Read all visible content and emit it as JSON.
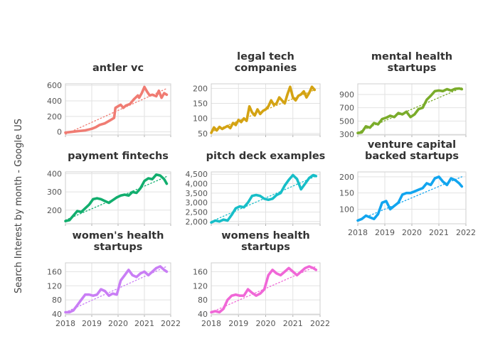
{
  "chart_data": {
    "type": "line",
    "ylabel": "Search Interest by month - Google US",
    "x_tick_labels": [
      "2018",
      "2019",
      "2020",
      "2021",
      "2022"
    ],
    "x_domain": [
      2018.0,
      2022.0
    ],
    "panels": [
      {
        "title": [
          "antler vc"
        ],
        "color": "#F07C73",
        "ylim": [
          -40,
          620
        ],
        "yticks": [
          0,
          200,
          400,
          600
        ],
        "ytick_labels": [
          "0",
          "200",
          "400",
          "600"
        ],
        "x": [
          2018.0,
          2018.25,
          2018.5,
          2018.75,
          2019.0,
          2019.15,
          2019.3,
          2019.5,
          2019.7,
          2019.85,
          2019.9,
          2020.0,
          2020.1,
          2020.2,
          2020.3,
          2020.45,
          2020.6,
          2020.75,
          2020.8,
          2020.9,
          2021.0,
          2021.1,
          2021.2,
          2021.3,
          2021.45,
          2021.55,
          2021.65,
          2021.75,
          2021.85
        ],
        "values": [
          -10,
          0,
          10,
          20,
          40,
          60,
          90,
          110,
          150,
          180,
          310,
          330,
          350,
          310,
          340,
          360,
          420,
          470,
          440,
          500,
          580,
          520,
          470,
          480,
          460,
          530,
          440,
          500,
          480
        ],
        "trend": [
          [
            2018.0,
            -30
          ],
          [
            2021.85,
            560
          ]
        ]
      },
      {
        "title": [
          "legal tech",
          "companies"
        ],
        "color": "#D4A313",
        "ylim": [
          45,
          215
        ],
        "yticks": [
          50,
          100,
          150,
          200
        ],
        "ytick_labels": [
          "50",
          "100",
          "150",
          "200"
        ],
        "x": [
          2018.0,
          2018.1,
          2018.2,
          2018.3,
          2018.4,
          2018.5,
          2018.6,
          2018.7,
          2018.8,
          2018.9,
          2019.0,
          2019.1,
          2019.2,
          2019.3,
          2019.4,
          2019.5,
          2019.6,
          2019.7,
          2019.8,
          2019.9,
          2020.0,
          2020.1,
          2020.2,
          2020.3,
          2020.4,
          2020.5,
          2020.6,
          2020.7,
          2020.8,
          2020.9,
          2021.0,
          2021.1,
          2021.2,
          2021.3,
          2021.4,
          2021.5,
          2021.6,
          2021.7,
          2021.8
        ],
        "values": [
          52,
          70,
          60,
          72,
          65,
          70,
          75,
          68,
          85,
          78,
          95,
          88,
          100,
          92,
          140,
          120,
          110,
          130,
          115,
          125,
          130,
          140,
          160,
          145,
          150,
          170,
          160,
          150,
          180,
          205,
          170,
          160,
          175,
          180,
          190,
          170,
          185,
          205,
          195
        ],
        "trend": [
          [
            2018.0,
            55
          ],
          [
            2021.8,
            195
          ]
        ]
      },
      {
        "title": [
          "mental health",
          "startups"
        ],
        "color": "#7AAC2A",
        "ylim": [
          290,
          1060
        ],
        "yticks": [
          300,
          500,
          700,
          900
        ],
        "ytick_labels": [
          "300",
          "500",
          "700",
          "900"
        ],
        "x": [
          2018.0,
          2018.15,
          2018.3,
          2018.45,
          2018.6,
          2018.75,
          2018.9,
          2019.05,
          2019.2,
          2019.35,
          2019.5,
          2019.65,
          2019.8,
          2019.95,
          2020.1,
          2020.25,
          2020.4,
          2020.55,
          2020.7,
          2020.85,
          2021.0,
          2021.15,
          2021.3,
          2021.45,
          2021.6,
          2021.75,
          2021.85
        ],
        "values": [
          320,
          330,
          420,
          400,
          470,
          450,
          530,
          550,
          580,
          560,
          620,
          600,
          640,
          560,
          600,
          680,
          700,
          820,
          880,
          950,
          960,
          950,
          980,
          960,
          985,
          990,
          980
        ],
        "trend": [
          [
            2018.0,
            330
          ],
          [
            2021.85,
            1000
          ]
        ]
      },
      {
        "title": [
          "payment fintechs"
        ],
        "color": "#12AE6E",
        "ylim": [
          125,
          410
        ],
        "yticks": [
          200,
          300,
          400
        ],
        "ytick_labels": [
          "200",
          "300",
          "400"
        ],
        "x": [
          2018.0,
          2018.15,
          2018.3,
          2018.45,
          2018.6,
          2018.75,
          2018.9,
          2019.05,
          2019.2,
          2019.35,
          2019.5,
          2019.65,
          2019.8,
          2019.95,
          2020.1,
          2020.25,
          2020.4,
          2020.55,
          2020.7,
          2020.85,
          2021.0,
          2021.15,
          2021.3,
          2021.45,
          2021.6,
          2021.75,
          2021.85
        ],
        "values": [
          140,
          145,
          170,
          195,
          190,
          210,
          230,
          260,
          265,
          260,
          250,
          240,
          255,
          270,
          280,
          285,
          280,
          300,
          295,
          320,
          360,
          375,
          370,
          395,
          390,
          370,
          345
        ],
        "trend": [
          [
            2018.0,
            145
          ],
          [
            2021.85,
            385
          ]
        ]
      },
      {
        "title": [
          "pitch deck examples"
        ],
        "color": "#17BEC8",
        "ylim": [
          1880,
          4620
        ],
        "yticks": [
          2000,
          2500,
          3000,
          3500,
          4000,
          4500
        ],
        "ytick_labels": [
          "2,000",
          "2,500",
          "3,000",
          "3,500",
          "4,000",
          "4,500"
        ],
        "x": [
          2018.0,
          2018.15,
          2018.3,
          2018.45,
          2018.6,
          2018.75,
          2018.9,
          2019.05,
          2019.2,
          2019.35,
          2019.5,
          2019.65,
          2019.8,
          2019.95,
          2020.1,
          2020.25,
          2020.4,
          2020.55,
          2020.7,
          2020.85,
          2021.0,
          2021.15,
          2021.3,
          2021.45,
          2021.6,
          2021.75,
          2021.85
        ],
        "values": [
          1950,
          2050,
          2000,
          2100,
          2050,
          2350,
          2700,
          2800,
          2750,
          3000,
          3350,
          3400,
          3350,
          3200,
          3150,
          3200,
          3400,
          3500,
          3900,
          4200,
          4450,
          4250,
          3700,
          4000,
          4300,
          4450,
          4400
        ],
        "trend": [
          [
            2018.0,
            2000
          ],
          [
            2021.85,
            4400
          ]
        ]
      },
      {
        "title": [
          "venture capital",
          "backed startups"
        ],
        "color": "#12A5EF",
        "ylim": [
          55,
          215
        ],
        "yticks": [
          100,
          150,
          200
        ],
        "ytick_labels": [
          "100",
          "150",
          "200"
        ],
        "x": [
          2018.0,
          2018.15,
          2018.3,
          2018.45,
          2018.6,
          2018.75,
          2018.9,
          2019.05,
          2019.2,
          2019.35,
          2019.5,
          2019.65,
          2019.8,
          2019.95,
          2020.1,
          2020.25,
          2020.4,
          2020.55,
          2020.7,
          2020.85,
          2021.0,
          2021.15,
          2021.3,
          2021.45,
          2021.6,
          2021.75,
          2021.85
        ],
        "values": [
          65,
          70,
          80,
          75,
          70,
          85,
          120,
          125,
          100,
          110,
          120,
          145,
          150,
          150,
          155,
          160,
          165,
          180,
          175,
          195,
          200,
          185,
          175,
          195,
          190,
          180,
          170
        ],
        "trend": [
          [
            2018.0,
            65
          ],
          [
            2021.85,
            200
          ]
        ]
      },
      {
        "title": [
          "women's health",
          "startups"
        ],
        "color": "#C97EF5",
        "ylim": [
          38,
          185
        ],
        "yticks": [
          40,
          80,
          120,
          160
        ],
        "ytick_labels": [
          "40",
          "80",
          "120",
          "160"
        ],
        "x": [
          2018.0,
          2018.15,
          2018.3,
          2018.45,
          2018.6,
          2018.75,
          2018.9,
          2019.05,
          2019.2,
          2019.35,
          2019.5,
          2019.65,
          2019.8,
          2019.95,
          2020.1,
          2020.25,
          2020.4,
          2020.55,
          2020.7,
          2020.85,
          2021.0,
          2021.15,
          2021.3,
          2021.45,
          2021.6,
          2021.75,
          2021.85
        ],
        "values": [
          45,
          45,
          50,
          65,
          80,
          95,
          95,
          92,
          95,
          110,
          105,
          92,
          98,
          95,
          135,
          150,
          165,
          150,
          145,
          155,
          160,
          150,
          160,
          170,
          175,
          165,
          160
        ],
        "trend": [
          [
            2018.0,
            45
          ],
          [
            2021.85,
            175
          ]
        ]
      },
      {
        "title": [
          "womens health",
          "startups"
        ],
        "color": "#F067D7",
        "ylim": [
          38,
          185
        ],
        "yticks": [
          40,
          80,
          120,
          160
        ],
        "ytick_labels": [
          "40",
          "80",
          "120",
          "160"
        ],
        "x": [
          2018.0,
          2018.15,
          2018.3,
          2018.45,
          2018.6,
          2018.75,
          2018.9,
          2019.05,
          2019.2,
          2019.35,
          2019.5,
          2019.65,
          2019.8,
          2019.95,
          2020.1,
          2020.25,
          2020.4,
          2020.55,
          2020.7,
          2020.85,
          2021.0,
          2021.15,
          2021.3,
          2021.45,
          2021.6,
          2021.75,
          2021.85
        ],
        "values": [
          45,
          48,
          45,
          55,
          80,
          92,
          95,
          92,
          92,
          110,
          100,
          92,
          98,
          110,
          150,
          165,
          155,
          150,
          160,
          170,
          160,
          150,
          160,
          170,
          175,
          170,
          165
        ],
        "trend": [
          [
            2018.0,
            45
          ],
          [
            2021.85,
            175
          ]
        ]
      }
    ]
  }
}
